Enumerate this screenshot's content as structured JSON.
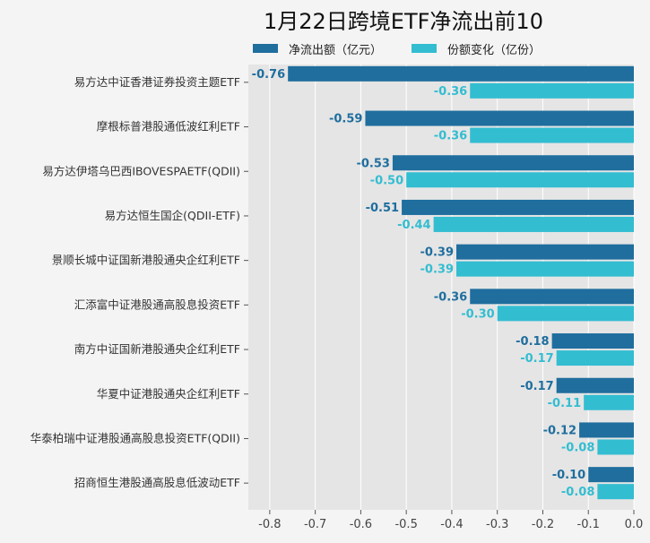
{
  "chart_data": {
    "type": "bar",
    "orientation": "horizontal",
    "title": "1月22日跨境ETF净流出前10",
    "categories": [
      "易方达中证香港证券投资主题ETF",
      "摩根标普港股通低波红利ETF",
      "易方达伊塔乌巴西IBOVESPAETF(QDII)",
      "易方达恒生国企(QDII-ETF)",
      "景顺长城中证国新港股通央企红利ETF",
      "汇添富中证港股通高股息投资ETF",
      "南方中证国新港股通央企红利ETF",
      "华夏中证港股通央企红利ETF",
      "华泰柏瑞中证港股通高股息投资ETF(QDII)",
      "招商恒生港股通高股息低波动ETF"
    ],
    "series": [
      {
        "name": "净流出额（亿元）",
        "color": "#1f6e9e",
        "label_color": "#1f6e9e",
        "values": [
          -0.76,
          -0.59,
          -0.53,
          -0.51,
          -0.39,
          -0.36,
          -0.18,
          -0.17,
          -0.12,
          -0.1
        ],
        "labels": [
          "-0.76",
          "-0.59",
          "-0.53",
          "-0.51",
          "-0.39",
          "-0.36",
          "-0.18",
          "-0.17",
          "-0.12",
          "-0.10"
        ]
      },
      {
        "name": "份额变化（亿份）",
        "color": "#33bdd1",
        "label_color": "#33bdd1",
        "values": [
          -0.36,
          -0.36,
          -0.5,
          -0.44,
          -0.39,
          -0.3,
          -0.17,
          -0.11,
          -0.08,
          -0.08
        ],
        "labels": [
          "-0.36",
          "-0.36",
          "-0.50",
          "-0.44",
          "-0.39",
          "-0.30",
          "-0.17",
          "-0.11",
          "-0.08",
          "-0.08"
        ]
      }
    ],
    "xlim": [
      -0.847,
      0.0
    ],
    "xticks": [
      "-0.8",
      "-0.7",
      "-0.6",
      "-0.5",
      "-0.4",
      "-0.3",
      "-0.2",
      "-0.1",
      "0.0"
    ],
    "xtick_values": [
      -0.8,
      -0.7,
      -0.6,
      -0.5,
      -0.4,
      -0.3,
      -0.2,
      -0.1,
      0.0
    ],
    "xlabel": "",
    "ylabel": "",
    "grid": true,
    "legend_placement": "top-center"
  }
}
